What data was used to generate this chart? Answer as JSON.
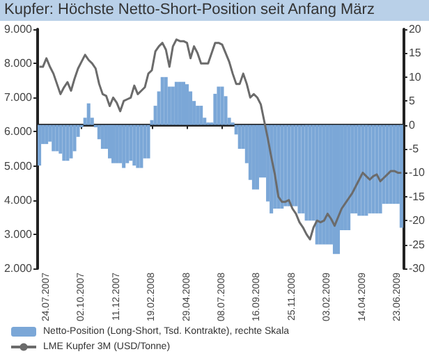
{
  "chart_data": {
    "type": "bar",
    "title": "Kupfer: Höchste Netto-Short-Position seit Anfang März",
    "categories": [
      null,
      null,
      "24.07.2007",
      null,
      null,
      null,
      null,
      null,
      null,
      null,
      null,
      null,
      "02.10.2007",
      null,
      null,
      null,
      null,
      null,
      null,
      null,
      null,
      null,
      "11.12.2007",
      null,
      null,
      null,
      null,
      null,
      null,
      null,
      null,
      null,
      "19.02.2008",
      null,
      null,
      null,
      null,
      null,
      null,
      null,
      null,
      null,
      "29.04.2008",
      null,
      null,
      null,
      null,
      null,
      null,
      null,
      null,
      null,
      "08.07.2008",
      null,
      null,
      null,
      null,
      null,
      null,
      null,
      null,
      null,
      "16.09.2008",
      null,
      null,
      null,
      null,
      null,
      null,
      null,
      null,
      null,
      "25.11.2008",
      null,
      null,
      null,
      null,
      null,
      null,
      null,
      null,
      null,
      "03.02.2009",
      null,
      null,
      null,
      null,
      null,
      null,
      null,
      null,
      null,
      "14.04.2009",
      null,
      null,
      null,
      null,
      null,
      null,
      null,
      null,
      null,
      "23.06.2009",
      null
    ],
    "series": [
      {
        "name": "Netto-Position (Long-Short, Tsd. Kontrakte), rechte Skala",
        "axis": "y2",
        "color": "#7ba7d7",
        "values": [
          -8.5,
          -4,
          -4,
          -3.5,
          -5.5,
          -5.5,
          -6,
          -7.5,
          -7.5,
          -7,
          -5.5,
          -2.5,
          -0.5,
          1.5,
          4.5,
          1.5,
          -0.5,
          -3,
          -5,
          -5,
          -7,
          -8,
          -8,
          -8,
          -9,
          -8,
          -7.5,
          -8.5,
          -9,
          -9,
          -7,
          -7,
          1,
          4,
          7,
          10,
          10,
          8,
          8,
          9,
          9,
          9,
          8.5,
          7,
          5,
          4,
          4,
          1.5,
          0.5,
          0.5,
          6.5,
          8,
          8,
          6,
          1.5,
          0.5,
          -2,
          -5,
          -5,
          -8,
          -11.5,
          -13.5,
          -13.5,
          -11,
          -11,
          -16,
          -18.5,
          -17.5,
          -17.5,
          -17.5,
          -17,
          -17,
          -17,
          -17,
          -18.5,
          -18.5,
          -20,
          -20,
          -20,
          -25,
          -25,
          -25,
          -25,
          -25,
          -27,
          -27,
          -22,
          -22,
          -22,
          -18.5,
          -18.5,
          -19,
          -19,
          -19,
          -18.5,
          -18.5,
          -18.5,
          -18.5,
          -16.5,
          -16.5,
          -16.5,
          -16.5,
          -16.5,
          -21.5
        ]
      },
      {
        "name": "LME Kupfer 3M (USD/Tonne)",
        "type": "line",
        "color": "#6b6b6b",
        "values": [
          7900,
          7900,
          8150,
          7900,
          7700,
          7400,
          7100,
          7300,
          7450,
          7200,
          7550,
          7850,
          8050,
          8250,
          8100,
          8000,
          7850,
          7400,
          7100,
          7050,
          6750,
          7000,
          6850,
          6600,
          6900,
          6950,
          7000,
          7350,
          7100,
          7200,
          7300,
          7700,
          7800,
          8350,
          8500,
          8600,
          8400,
          7900,
          8500,
          8700,
          8650,
          8650,
          8600,
          8150,
          8500,
          8300,
          8000,
          8000,
          8000,
          8300,
          8600,
          8600,
          8550,
          8300,
          8050,
          7700,
          7400,
          7400,
          7700,
          7400,
          7000,
          7100,
          7000,
          6800,
          6300,
          5800,
          5250,
          4750,
          4100,
          3950,
          3950,
          4000,
          3750,
          3600,
          3350,
          3200,
          3000,
          2850,
          3200,
          3400,
          3350,
          3400,
          3600,
          3450,
          3250,
          3500,
          3750,
          3900,
          4050,
          4200,
          4400,
          4600,
          4800,
          4700,
          4600,
          4700,
          4750,
          4550,
          4650,
          4750,
          4850,
          4850,
          4800,
          4800
        ]
      }
    ],
    "ylim": [
      2000,
      9000
    ],
    "yticks": [
      {
        "value": 2000,
        "label": "2.000"
      },
      {
        "value": 3000,
        "label": "3.000"
      },
      {
        "value": 4000,
        "label": "4.000"
      },
      {
        "value": 5000,
        "label": "5.000"
      },
      {
        "value": 6000,
        "label": "6.000"
      },
      {
        "value": 7000,
        "label": "7.000"
      },
      {
        "value": 8000,
        "label": "8.000"
      },
      {
        "value": 9000,
        "label": "9.000"
      }
    ],
    "y2lim": [
      -30,
      20
    ],
    "y2ticks": [
      -30,
      -25,
      -20,
      -15,
      -10,
      -5,
      0,
      5,
      10,
      15,
      20
    ],
    "legend": "bottom",
    "marker": "none"
  }
}
